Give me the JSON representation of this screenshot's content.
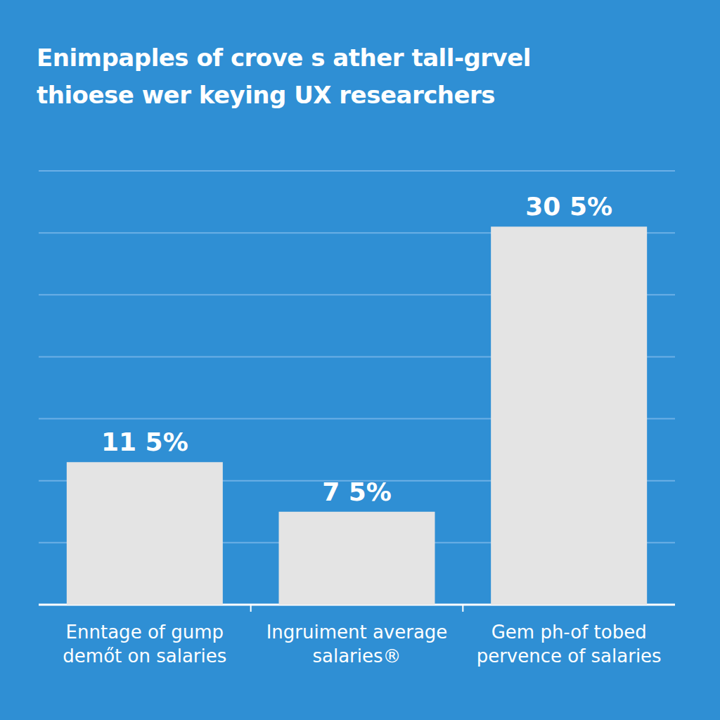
{
  "chart_data": {
    "type": "bar",
    "title": "Enimpaples of crove s ather tall-grvel thioese wer keying UX researchers",
    "categories": [
      "Enntage of gump demőt on salaries",
      "Ingruiment average salaries®",
      "Gem ph-of tobed pervence of salaries"
    ],
    "values": [
      11.5,
      7.5,
      30.5
    ],
    "value_labels": [
      "11 5%",
      "7 5%",
      "30 5%"
    ],
    "color": "#e4e4e4",
    "ylim": [
      0,
      35
    ],
    "yticks": [
      0,
      5,
      10,
      15,
      20,
      25,
      30,
      35
    ],
    "grid": true,
    "data_labels": true,
    "tick_labels": false
  }
}
